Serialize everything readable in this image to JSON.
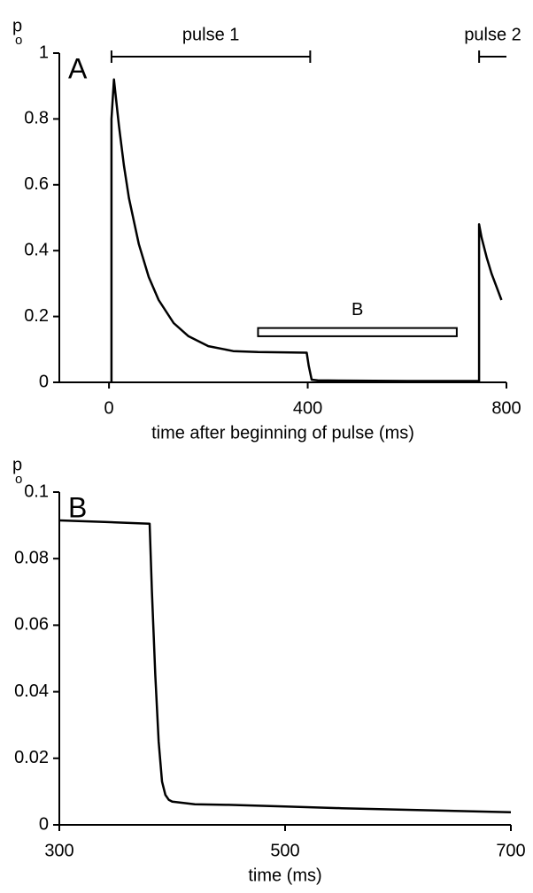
{
  "chart_data": [
    {
      "type": "line",
      "panel_label": "A",
      "y_label": {
        "main": "p",
        "sub": "o"
      },
      "x_label": "time after beginning of pulse (ms)",
      "xlim": [
        -100,
        800
      ],
      "xticks": [
        0,
        400,
        800
      ],
      "ylim": [
        0,
        1
      ],
      "yticks": [
        0,
        0.2,
        0.4,
        0.6,
        0.8,
        1
      ],
      "color": "#000000",
      "x": [
        5,
        5,
        10,
        20,
        30,
        40,
        60,
        80,
        100,
        130,
        160,
        200,
        250,
        300,
        350,
        398,
        402,
        408,
        420,
        500,
        600,
        700,
        745,
        745,
        750,
        760,
        770,
        780,
        790
      ],
      "y": [
        0,
        0.8,
        0.92,
        0.78,
        0.66,
        0.56,
        0.42,
        0.32,
        0.25,
        0.18,
        0.14,
        0.11,
        0.095,
        0.092,
        0.091,
        0.09,
        0.05,
        0.008,
        0.006,
        0.005,
        0.004,
        0.004,
        0.004,
        0.48,
        0.44,
        0.38,
        0.33,
        0.29,
        0.25
      ],
      "annotations": [
        {
          "text": "pulse 1",
          "x": [
            5,
            405
          ]
        },
        {
          "text": "pulse 2",
          "x": [
            745,
            800
          ]
        }
      ],
      "box": {
        "text": "B",
        "x": [
          300,
          700
        ],
        "y": [
          0.14,
          0.165
        ]
      }
    },
    {
      "type": "line",
      "panel_label": "B",
      "y_label": {
        "main": "p",
        "sub": "o"
      },
      "x_label": "time (ms)",
      "xlim": [
        300,
        700
      ],
      "xticks": [
        300,
        500,
        700
      ],
      "ylim": [
        0,
        0.1
      ],
      "yticks": [
        0,
        0.02,
        0.04,
        0.06,
        0.08,
        0.1
      ],
      "color": "#000000",
      "x": [
        300,
        340,
        380,
        382,
        385,
        388,
        391,
        394,
        397,
        400,
        420,
        450,
        500,
        550,
        600,
        650,
        700
      ],
      "y": [
        0.0915,
        0.091,
        0.0905,
        0.07,
        0.045,
        0.025,
        0.013,
        0.009,
        0.0075,
        0.007,
        0.0062,
        0.006,
        0.0055,
        0.005,
        0.0046,
        0.0042,
        0.0038
      ]
    }
  ]
}
